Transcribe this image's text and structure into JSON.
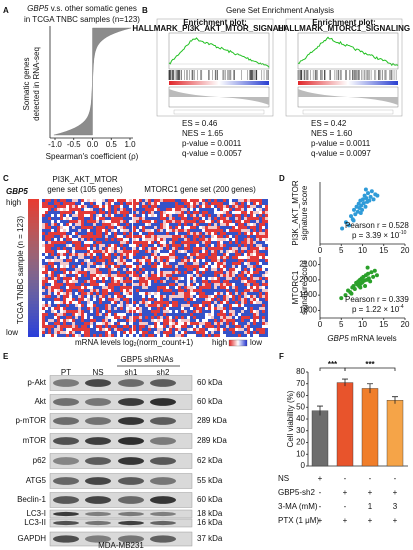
{
  "panels": {
    "A": {
      "label": "A",
      "title_gene": "GBP5",
      "title_rest": " v.s. other somatic genes",
      "title_line2": "in TCGA TNBC samples (n=123)",
      "ylabel": [
        "Somatic genes",
        "detected in RNA-seq"
      ],
      "xticks": [
        "-1.0",
        "-0.5",
        "0.0",
        "0.5",
        "1.0"
      ],
      "xlabel": "Spearman's coefficient (ρ)"
    },
    "B": {
      "label": "B",
      "title": "Gene Set Enrichment Analysis",
      "plots": [
        {
          "heading": "Enrichment plot:",
          "gene_set": "HALLMARK_PI3K_AKT_MTOR_SIGNALING",
          "stats": [
            "ES = 0.46",
            "NES = 1.65",
            "p-value = 0.0011",
            "q-value = 0.0057"
          ]
        },
        {
          "heading": "Enrichment plot:",
          "gene_set": "HALLMARK_MTORC1_SIGNALING",
          "stats": [
            "ES = 0.42",
            "NES = 1.60",
            "p-value = 0.0011",
            "q-value = 0.0097"
          ]
        }
      ]
    },
    "C": {
      "label": "C",
      "gene": "GBP5",
      "high": "high",
      "low": "low",
      "ylabel": "TCGA TNBC sample (n = 123)",
      "sets": [
        [
          "PI3K_AKT_MTOR",
          "gene set (105 genes)"
        ],
        [
          "MTORC1 gene set (200 genes)"
        ]
      ],
      "legend": "mRNA levels log",
      "legend_sub": "2",
      "legend_rest": "(norm_count+1)",
      "legend_high": "high",
      "legend_low": "low"
    },
    "D": {
      "label": "D",
      "xlabel_gene": "GBP5",
      "xlabel_rest": " mRNA levels"
    },
    "E": {
      "label": "E",
      "group": "GBP5 shRNAs",
      "lanes": [
        "PT",
        "NS",
        "sh1",
        "sh2"
      ],
      "rows": [
        {
          "name": "p-Akt",
          "size": "60 kDa"
        },
        {
          "name": "Akt",
          "size": "60 kDa"
        },
        {
          "name": "p-mTOR",
          "size": "289 kDa"
        },
        {
          "name": "mTOR",
          "size": "289 kDa"
        },
        {
          "name": "p62",
          "size": "62 kDa"
        },
        {
          "name": "ATG5",
          "size": "55 kDa"
        },
        {
          "name": "Beclin-1",
          "size": "60 kDa"
        },
        {
          "name": "LC3-I",
          "size": "18 kDa"
        },
        {
          "name": "LC3-II",
          "size": "16 kDa"
        },
        {
          "name": "GAPDH",
          "size": "37 kDa"
        }
      ],
      "cell_line": "MDA-MB231"
    },
    "F": {
      "label": "F",
      "treatments": [
        {
          "name": "NS",
          "cells": [
            "+",
            "-",
            "-",
            "-"
          ]
        },
        {
          "name": "GBP5-sh2",
          "cells": [
            "-",
            "+",
            "+",
            "+"
          ]
        },
        {
          "name": "3-MA (mM)",
          "cells": [
            "-",
            "-",
            "1",
            "3"
          ]
        },
        {
          "name": "PTX (1 μM)",
          "cells": [
            "+",
            "+",
            "+",
            "+"
          ]
        }
      ]
    }
  },
  "chart_data": [
    {
      "type": "scatter",
      "ylabel": [
        "PI3K_AKT_MTOR",
        "signature score"
      ],
      "color": "#2f9bd8",
      "x": [
        5.2,
        6.1,
        6.8,
        7.3,
        7.7,
        8.0,
        8.3,
        8.6,
        8.9,
        9.1,
        9.3,
        9.5,
        9.7,
        9.9,
        10.1,
        10.3,
        10.5,
        10.7,
        10.9,
        11.1,
        11.3,
        11.6,
        11.9,
        12.2,
        12.6,
        13.0,
        13.5,
        7.9,
        9.6,
        10.8
      ],
      "y": [
        0.25,
        0.35,
        0.3,
        0.45,
        0.4,
        0.55,
        0.48,
        0.6,
        0.52,
        0.65,
        0.58,
        0.7,
        0.62,
        0.55,
        0.72,
        0.66,
        0.78,
        0.6,
        0.74,
        0.68,
        0.82,
        0.7,
        0.76,
        0.85,
        0.72,
        0.8,
        0.78,
        0.38,
        0.5,
        0.88
      ],
      "xlim": [
        0,
        20
      ],
      "xticks": [
        0,
        5,
        10,
        15,
        20
      ],
      "ylim": [
        0,
        1
      ],
      "annotation": "Pearson r = 0.528",
      "annotation_p": "p = 3.39 × 10",
      "annotation_exp": "-10"
    },
    {
      "type": "scatter",
      "ylabel": [
        "MTORC1",
        "signature score"
      ],
      "color": "#2aa02a",
      "x": [
        5.0,
        6.0,
        6.6,
        7.1,
        7.6,
        7.9,
        8.2,
        8.5,
        8.8,
        9.0,
        9.2,
        9.4,
        9.6,
        9.8,
        10.0,
        10.2,
        10.4,
        10.6,
        10.8,
        11.0,
        11.3,
        11.5,
        11.8,
        12.1,
        12.5,
        12.9,
        13.4,
        7.4,
        9.5,
        11.2
      ],
      "y": [
        1880,
        1900,
        1930,
        1920,
        1950,
        1960,
        1940,
        1980,
        1970,
        1990,
        1960,
        2000,
        1975,
        2010,
        1985,
        2020,
        1995,
        1960,
        2030,
        2000,
        2040,
        2010,
        1990,
        2050,
        2020,
        2060,
        2030,
        1910,
        1950,
        2080
      ],
      "xlim": [
        0,
        20
      ],
      "xticks": [
        0,
        5,
        10,
        15,
        20
      ],
      "ylim": [
        1750,
        2150
      ],
      "yticks": [
        1800,
        1900,
        2000,
        2100
      ],
      "annotation": "Pearson r = 0.339",
      "annotation_p": "p = 1.22 × 10",
      "annotation_exp": "-4"
    },
    {
      "type": "bar",
      "ylabel": "Cell viability (%)",
      "values": [
        47,
        71,
        66,
        56
      ],
      "errors": [
        4,
        3,
        4,
        3
      ],
      "colors": [
        "#6d6d6d",
        "#e8542c",
        "#f07e2a",
        "#f5a448"
      ],
      "ylim": [
        0,
        80
      ],
      "yticks": [
        0,
        10,
        20,
        30,
        40,
        50,
        60,
        70,
        80
      ],
      "significance": [
        "***",
        "***"
      ]
    }
  ]
}
